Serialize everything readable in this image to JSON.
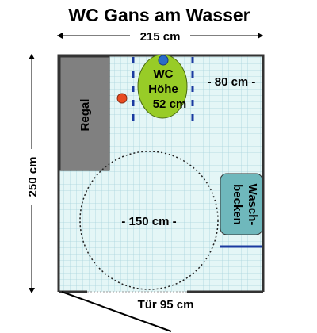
{
  "title": "WC Gans am Wasser",
  "dimensions": {
    "width": "215 cm",
    "height": "250 cm",
    "door": "Tür 95 cm",
    "clearance_right": "- 80 cm -",
    "turning_circle": "- 150 cm -"
  },
  "fixtures": {
    "shelf": "Regal",
    "wc_line1": "WC",
    "wc_line2": "Höhe",
    "wc_line3": "52 cm",
    "sink_line1": "Wasch-",
    "sink_line2": "becken"
  },
  "colors": {
    "floor": "#e4f6f6",
    "grid": "#a9d4dc",
    "wall": "#333333",
    "shelf": "#808080",
    "wc": "#98cc27",
    "sink": "#6fb8bc",
    "grab_bar": "#1a3aa0",
    "flush_button": "#2a6cc8",
    "emergency_button": "#e84c22"
  }
}
